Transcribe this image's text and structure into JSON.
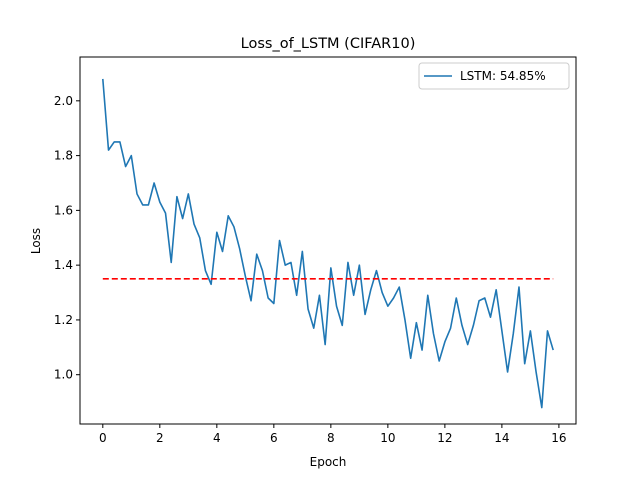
{
  "chart_data": {
    "type": "line",
    "title": "Loss_of_LSTM (CIFAR10)",
    "xlabel": "Epoch",
    "ylabel": "Loss",
    "xlim": [
      -0.8,
      16.6
    ],
    "ylim": [
      0.82,
      2.16
    ],
    "xticks": [
      0,
      2,
      4,
      6,
      8,
      10,
      12,
      14,
      16
    ],
    "yticks": [
      1.0,
      1.2,
      1.4,
      1.6,
      1.8,
      2.0
    ],
    "ytick_labels": [
      "1.0",
      "1.2",
      "1.4",
      "1.6",
      "1.8",
      "2.0"
    ],
    "grid": false,
    "legend_position": "top-right",
    "series": [
      {
        "name": "LSTM: 54.85%",
        "color": "#1f77b4",
        "style": "solid",
        "x": [
          0.0,
          0.2,
          0.4,
          0.6,
          0.8,
          1.0,
          1.2,
          1.4,
          1.6,
          1.8,
          2.0,
          2.2,
          2.4,
          2.6,
          2.8,
          3.0,
          3.2,
          3.4,
          3.6,
          3.8,
          4.0,
          4.2,
          4.4,
          4.6,
          4.8,
          5.0,
          5.2,
          5.4,
          5.6,
          5.8,
          6.0,
          6.2,
          6.4,
          6.6,
          6.8,
          7.0,
          7.2,
          7.4,
          7.6,
          7.8,
          8.0,
          8.2,
          8.4,
          8.6,
          8.8,
          9.0,
          9.2,
          9.4,
          9.6,
          9.8,
          10.0,
          10.2,
          10.4,
          10.6,
          10.8,
          11.0,
          11.2,
          11.4,
          11.6,
          11.8,
          12.0,
          12.2,
          12.4,
          12.6,
          12.8,
          13.0,
          13.2,
          13.4,
          13.6,
          13.8,
          14.0,
          14.2,
          14.4,
          14.6,
          14.8,
          15.0,
          15.2,
          15.4,
          15.6,
          15.8
        ],
        "y": [
          2.08,
          1.82,
          1.85,
          1.85,
          1.76,
          1.8,
          1.66,
          1.62,
          1.62,
          1.7,
          1.63,
          1.59,
          1.41,
          1.65,
          1.57,
          1.66,
          1.55,
          1.5,
          1.38,
          1.33,
          1.52,
          1.45,
          1.58,
          1.54,
          1.46,
          1.36,
          1.27,
          1.44,
          1.38,
          1.28,
          1.26,
          1.49,
          1.4,
          1.41,
          1.29,
          1.45,
          1.24,
          1.17,
          1.29,
          1.11,
          1.39,
          1.25,
          1.18,
          1.41,
          1.29,
          1.4,
          1.22,
          1.31,
          1.38,
          1.3,
          1.25,
          1.28,
          1.32,
          1.2,
          1.06,
          1.19,
          1.09,
          1.29,
          1.15,
          1.05,
          1.12,
          1.17,
          1.28,
          1.18,
          1.11,
          1.18,
          1.27,
          1.28,
          1.21,
          1.31,
          1.16,
          1.01,
          1.15,
          1.32,
          1.04,
          1.16,
          1.01,
          0.88,
          1.16,
          1.09
        ]
      },
      {
        "name": "",
        "color": "#ff0000",
        "style": "dashed",
        "x": [
          0.0,
          15.8
        ],
        "y": [
          1.35,
          1.35
        ]
      }
    ]
  }
}
